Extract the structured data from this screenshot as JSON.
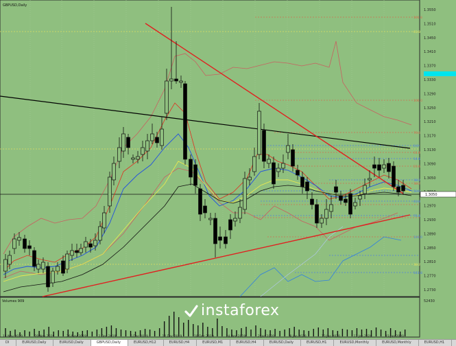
{
  "chart_title": "GBPUSD,Daily",
  "volume_label": "Volumes 909",
  "volume_axis_label": "52430",
  "current_price": "1.3050",
  "price_axis": [
    "1.3550",
    "1.3510",
    "1.3450",
    "1.3410",
    "1.3370",
    "1.3330",
    "1.3290",
    "1.3250",
    "1.3210",
    "1.3170",
    "1.3130",
    "1.3090",
    "1.3050",
    "1.3010",
    "1.2970",
    "1.2930",
    "1.2890",
    "1.2850",
    "1.2810",
    "1.2770",
    "1.2730"
  ],
  "fib_labels": [
    "161.8",
    "61.8",
    "100.0",
    "76.4",
    "0.0",
    "61.8",
    "14.6",
    "23.6",
    "38.2",
    "38.2",
    "50.0",
    "61.8",
    "76.4",
    "100.0",
    "38.2",
    "161.8"
  ],
  "date_labels": [
    "14 Nov 2019",
    "20 Nov 2019",
    "26 Nov 2019",
    "2 Dec 2019",
    "6 Dec 2019",
    "12 Dec 2019",
    "18 Dec 2019",
    "24 Dec 2019",
    "2 Jan 2020",
    "8 Jan 2020",
    "13 Jan 2020",
    "17 Jan 2020",
    "23 Jan 2020"
  ],
  "tabs": [
    "Dl",
    "EURUSD,Daily",
    "EURUSD,Daily",
    "GBPUSD,Daily",
    "EURUSD,H12",
    "EURUSD,H4",
    "EURUSD,M1",
    "EURUSD,H4",
    "EURUSD,Daily",
    "EURUSD,H1",
    "EURUSD,Monthly",
    "EURUSD,Monthly",
    "EURUSD,H1",
    "EURUSD,Weekly",
    "EURUSD,H1",
    "E"
  ],
  "watermark": "instaforex",
  "colors": {
    "background": "#8fbf7f",
    "trend_red": "#e02020",
    "trend_black": "#000000",
    "grid": "#a8d098"
  }
}
